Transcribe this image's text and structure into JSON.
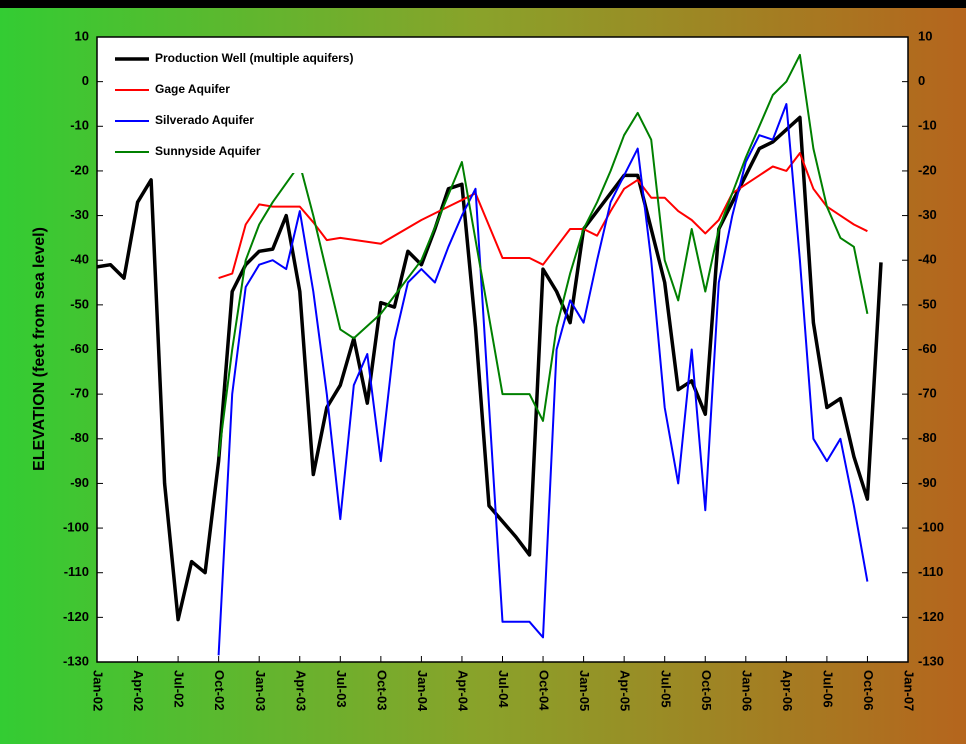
{
  "chart_data": {
    "type": "line",
    "y_label": "ELEVATION (feet from sea level)",
    "xlim": [
      "2002-01",
      "2007-01"
    ],
    "xticks": [
      {
        "value": "2002-01",
        "label": "Jan-02"
      },
      {
        "value": "2002-04",
        "label": "Apr-02"
      },
      {
        "value": "2002-07",
        "label": "Jul-02"
      },
      {
        "value": "2002-10",
        "label": "Oct-02"
      },
      {
        "value": "2003-01",
        "label": "Jan-03"
      },
      {
        "value": "2003-04",
        "label": "Apr-03"
      },
      {
        "value": "2003-07",
        "label": "Jul-03"
      },
      {
        "value": "2003-10",
        "label": "Oct-03"
      },
      {
        "value": "2004-01",
        "label": "Jan-04"
      },
      {
        "value": "2004-04",
        "label": "Apr-04"
      },
      {
        "value": "2004-07",
        "label": "Jul-04"
      },
      {
        "value": "2004-10",
        "label": "Oct-04"
      },
      {
        "value": "2005-01",
        "label": "Jan-05"
      },
      {
        "value": "2005-04",
        "label": "Apr-05"
      },
      {
        "value": "2005-07",
        "label": "Jul-05"
      },
      {
        "value": "2005-10",
        "label": "Oct-05"
      },
      {
        "value": "2006-01",
        "label": "Jan-06"
      },
      {
        "value": "2006-04",
        "label": "Apr-06"
      },
      {
        "value": "2006-07",
        "label": "Jul-06"
      },
      {
        "value": "2006-10",
        "label": "Oct-06"
      },
      {
        "value": "2007-01",
        "label": "Jan-07"
      }
    ],
    "ylim": [
      -130,
      10
    ],
    "yticks": [
      -130,
      -120,
      -110,
      -100,
      -90,
      -80,
      -70,
      -60,
      -50,
      -40,
      -30,
      -20,
      -10,
      0,
      10
    ],
    "y2lim": [
      -130,
      10
    ],
    "y2ticks": [
      -130,
      -120,
      -110,
      -100,
      -90,
      -80,
      -70,
      -60,
      -50,
      -40,
      -30,
      -20,
      -10,
      0,
      10
    ],
    "legend": "upper left",
    "series": [
      {
        "name": "Production Well (multiple aquifers)",
        "color": "#000000",
        "x": [
          "2002-01",
          "2002-02",
          "2002-03",
          "2002-04",
          "2002-05",
          "2002-06",
          "2002-07",
          "2002-08",
          "2002-09",
          "2002-10",
          "2002-11",
          "2002-12",
          "2003-01",
          "2003-02",
          "2003-03",
          "2003-04",
          "2003-05",
          "2003-06",
          "2003-07",
          "2003-08",
          "2003-09",
          "2003-10",
          "2003-11",
          "2003-12",
          "2004-01",
          "2004-02",
          "2004-03",
          "2004-04",
          "2004-05",
          "2004-06",
          "2004-08",
          "2004-09",
          "2004-10",
          "2004-11",
          "2004-12",
          "2005-01",
          "2005-04",
          "2005-05",
          "2005-07",
          "2005-08",
          "2005-09",
          "2005-10",
          "2005-11",
          "2005-12",
          "2006-02",
          "2006-03",
          "2006-05",
          "2006-06",
          "2006-07",
          "2006-08",
          "2006-09",
          "2006-10",
          "2006-11"
        ],
        "values": [
          -41.5,
          -41,
          -44,
          -27,
          -22,
          -90,
          -120.5,
          -107.5,
          -110,
          -85,
          -47,
          -41,
          -38,
          -37.5,
          -30,
          -47,
          -88,
          -73,
          -68,
          -57.5,
          -72,
          -49.5,
          -50.5,
          -38,
          -41,
          -33,
          -24,
          -23,
          -55,
          -95,
          -102,
          -106,
          -42,
          -47,
          -54,
          -33,
          -21,
          -21,
          -45,
          -69,
          -67,
          -74.5,
          -33,
          -27,
          -15,
          -13.5,
          -8,
          -54,
          -73,
          -71,
          -84,
          -93.5,
          -40.5
        ]
      },
      {
        "name": "Gage Aquifer",
        "color": "#ff0000",
        "x": [
          "2002-10",
          "2002-11",
          "2002-12",
          "2003-01",
          "2003-02",
          "2003-04",
          "2003-05",
          "2003-06",
          "2003-07",
          "2003-10",
          "2004-01",
          "2004-03",
          "2004-05",
          "2004-07",
          "2004-09",
          "2004-10",
          "2004-11",
          "2004-12",
          "2005-01",
          "2005-02",
          "2005-03",
          "2005-04",
          "2005-05",
          "2005-06",
          "2005-07",
          "2005-08",
          "2005-09",
          "2005-10",
          "2005-11",
          "2005-12",
          "2006-01",
          "2006-02",
          "2006-03",
          "2006-04",
          "2006-05",
          "2006-06",
          "2006-07",
          "2006-08",
          "2006-09",
          "2006-10"
        ],
        "values": [
          -44,
          -43,
          -32,
          -27.5,
          -28,
          -28,
          -31.5,
          -35.5,
          -35,
          -36.3,
          -31,
          -28,
          -25,
          -39.5,
          -39.5,
          -41,
          -37,
          -33,
          -33,
          -34.5,
          -29,
          -24,
          -22,
          -26,
          -26,
          -29,
          -31,
          -34,
          -31,
          -25,
          -23,
          -21,
          -19,
          -20,
          -16,
          -24,
          -28,
          -30,
          -32,
          -33.5
        ]
      },
      {
        "name": "Silverado Aquifer",
        "color": "#0000ff",
        "x": [
          "2002-10",
          "2002-11",
          "2002-12",
          "2003-01",
          "2003-02",
          "2003-03",
          "2003-04",
          "2003-05",
          "2003-06",
          "2003-07",
          "2003-08",
          "2003-09",
          "2003-10",
          "2003-11",
          "2003-12",
          "2004-01",
          "2004-02",
          "2004-03",
          "2004-04",
          "2004-05",
          "2004-07",
          "2004-09",
          "2004-10",
          "2004-11",
          "2004-12",
          "2005-01",
          "2005-02",
          "2005-03",
          "2005-04",
          "2005-05",
          "2005-06",
          "2005-07",
          "2005-08",
          "2005-09",
          "2005-10",
          "2005-11",
          "2005-12",
          "2006-01",
          "2006-02",
          "2006-03",
          "2006-04",
          "2006-05",
          "2006-06",
          "2006-07",
          "2006-08",
          "2006-09",
          "2006-10"
        ],
        "values": [
          -128.5,
          -70,
          -46,
          -41,
          -40,
          -42,
          -29,
          -47,
          -70,
          -98,
          -68,
          -61,
          -85,
          -58,
          -45,
          -42,
          -45,
          -37,
          -30,
          -24,
          -121,
          -121,
          -124.5,
          -60,
          -49,
          -54,
          -40,
          -27,
          -21,
          -15,
          -40,
          -73,
          -90,
          -60,
          -96,
          -45,
          -30,
          -18,
          -12,
          -13,
          -5,
          -40,
          -80,
          -85,
          -80,
          -95,
          -112
        ]
      },
      {
        "name": "Sunnyside Aquifer",
        "color": "#008000",
        "x": [
          "2002-10",
          "2002-11",
          "2002-12",
          "2003-01",
          "2003-02",
          "2003-04",
          "2003-05",
          "2003-07",
          "2003-08",
          "2003-10",
          "2004-01",
          "2004-04",
          "2004-07",
          "2004-08",
          "2004-09",
          "2004-10",
          "2004-11",
          "2004-12",
          "2005-01",
          "2005-02",
          "2005-03",
          "2005-04",
          "2005-05",
          "2005-06",
          "2005-07",
          "2005-08",
          "2005-09",
          "2005-10",
          "2005-11",
          "2005-12",
          "2006-01",
          "2006-02",
          "2006-03",
          "2006-04",
          "2006-05",
          "2006-06",
          "2006-07",
          "2006-08",
          "2006-09",
          "2006-10"
        ],
        "values": [
          -84,
          -60,
          -40,
          -32,
          -27,
          -18.5,
          -30,
          -55.5,
          -57.5,
          -52,
          -40,
          -18,
          -70,
          -70,
          -70,
          -76,
          -55,
          -43,
          -33,
          -27,
          -20,
          -12,
          -7,
          -13,
          -40,
          -49,
          -33,
          -47,
          -33,
          -25,
          -17,
          -10,
          -3,
          0,
          6,
          -15,
          -28,
          -35,
          -37,
          -52
        ]
      }
    ]
  }
}
